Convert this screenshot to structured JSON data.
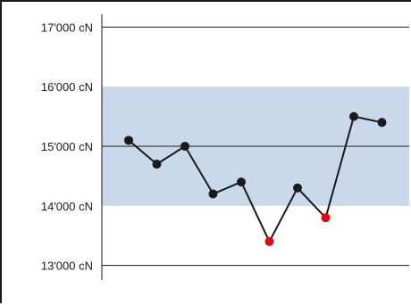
{
  "chart_data": {
    "type": "line",
    "title": "",
    "xlabel": "",
    "ylabel": "",
    "y_unit": "cN",
    "ylim": [
      12800,
      17300
    ],
    "y_ticks": [
      13000,
      14000,
      15000,
      16000,
      17000
    ],
    "y_tick_labels": [
      "13'000 cN",
      "14'000 cN",
      "15'000 cN",
      "16'000 cN",
      "17'000 cN"
    ],
    "tolerance_band": {
      "lower": 14000,
      "upper": 16000,
      "color": "#c9d9eb"
    },
    "reference_line": 15000,
    "grid": "horizontal at 13000, 15000 and 17000",
    "legend": "none",
    "series": [
      {
        "values": [
          15100,
          14700,
          15000,
          14200,
          14400,
          13400,
          14300,
          13800,
          15500,
          15400
        ],
        "line_color": "#1a1a1a",
        "marker_color": "#1a1a1a",
        "out_of_tolerance_marker_color": "#e30613"
      }
    ]
  }
}
